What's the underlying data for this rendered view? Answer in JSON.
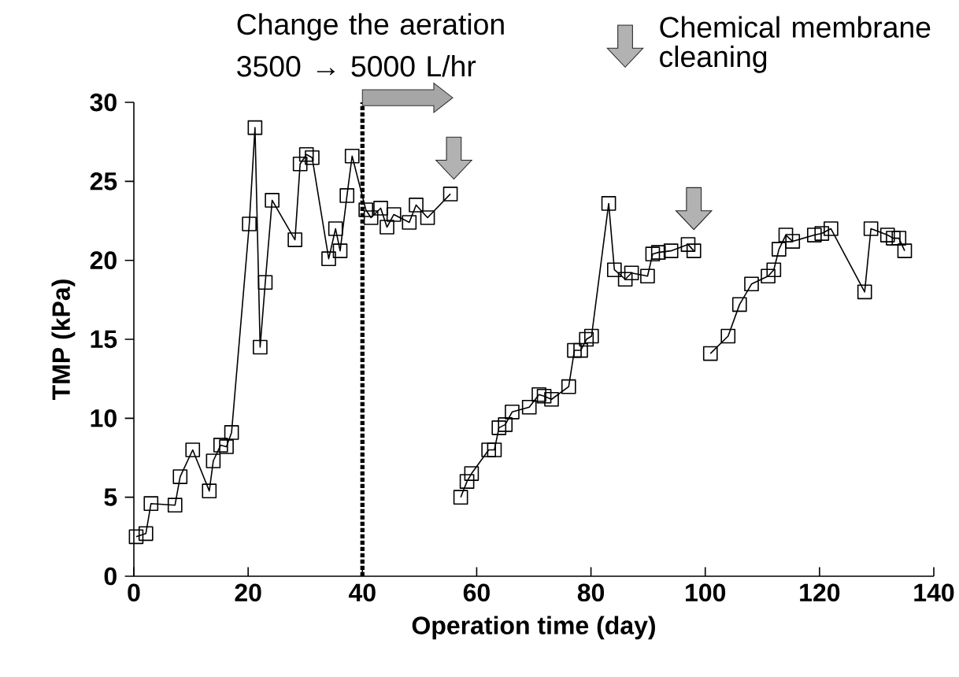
{
  "chart_data": {
    "type": "line",
    "xlabel": "Operation time (day)",
    "ylabel": "TMP (kPa)",
    "xlim": [
      0,
      140
    ],
    "ylim": [
      0,
      30
    ],
    "xticks": [
      0,
      20,
      40,
      60,
      80,
      100,
      120,
      140
    ],
    "yticks": [
      0,
      5,
      10,
      15,
      20,
      25,
      30
    ],
    "marker": "square",
    "line_style": "solid",
    "series": [
      {
        "color": "#000000",
        "x": [
          0.4,
          2.1,
          3,
          7.2,
          8.1,
          10.3,
          13.2,
          13.9,
          15.2,
          16.2,
          17.1,
          20.2,
          21.2,
          22.1,
          23,
          24.2,
          28.2,
          29.1,
          30.2,
          31.2,
          34.1,
          35.3,
          36.1,
          37.3,
          38.2,
          40.6,
          41.5,
          43.2,
          44.3,
          45.5,
          48.2,
          49.4,
          51.4,
          55.4
        ],
        "values": [
          2.5,
          2.7,
          4.6,
          4.5,
          6.3,
          8.0,
          5.4,
          7.3,
          8.3,
          8.2,
          9.1,
          22.3,
          28.4,
          14.5,
          18.6,
          23.8,
          21.3,
          26.1,
          26.7,
          26.5,
          20.1,
          22.0,
          20.6,
          24.1,
          26.6,
          23.2,
          22.7,
          23.3,
          22.1,
          22.9,
          22.4,
          23.5,
          22.7,
          24.2
        ]
      },
      {
        "color": "#000000",
        "x": [
          57.2,
          58.3,
          59.1,
          62.1,
          63.1,
          63.9,
          65,
          66.2,
          69.2,
          70.9,
          71.8,
          73.1,
          76.1,
          77.1,
          78.2,
          79.2,
          80.1,
          83.1,
          84.1,
          86,
          87.1,
          89.9,
          90.8,
          91.8,
          94,
          97,
          98
        ],
        "values": [
          5.0,
          6.0,
          6.5,
          8.0,
          8.0,
          9.4,
          9.6,
          10.4,
          10.7,
          11.5,
          11.4,
          11.2,
          12.0,
          14.3,
          14.3,
          15.0,
          15.2,
          23.6,
          19.4,
          18.8,
          19.2,
          19.0,
          20.4,
          20.5,
          20.6,
          21.0,
          20.6
        ]
      },
      {
        "color": "#000000",
        "x": [
          100.9,
          104,
          106,
          108.1,
          111,
          112,
          112.9,
          114.1,
          115.3,
          119.1,
          120.4,
          122,
          127.9,
          129,
          131.9,
          132.9,
          133.9,
          134.9
        ],
        "values": [
          14.1,
          15.2,
          17.2,
          18.5,
          19.0,
          19.4,
          20.7,
          21.6,
          21.2,
          21.6,
          21.7,
          22.0,
          18.0,
          22.0,
          21.6,
          21.4,
          21.4,
          20.6
        ]
      }
    ],
    "ref_lines": [
      {
        "axis": "x",
        "value": 40,
        "label": "Change the aeration 3500 → 5000 L/hr",
        "color": "#000000",
        "line_style": "dotted"
      }
    ],
    "annotations": [
      "Chemical membrane cleaning"
    ]
  }
}
